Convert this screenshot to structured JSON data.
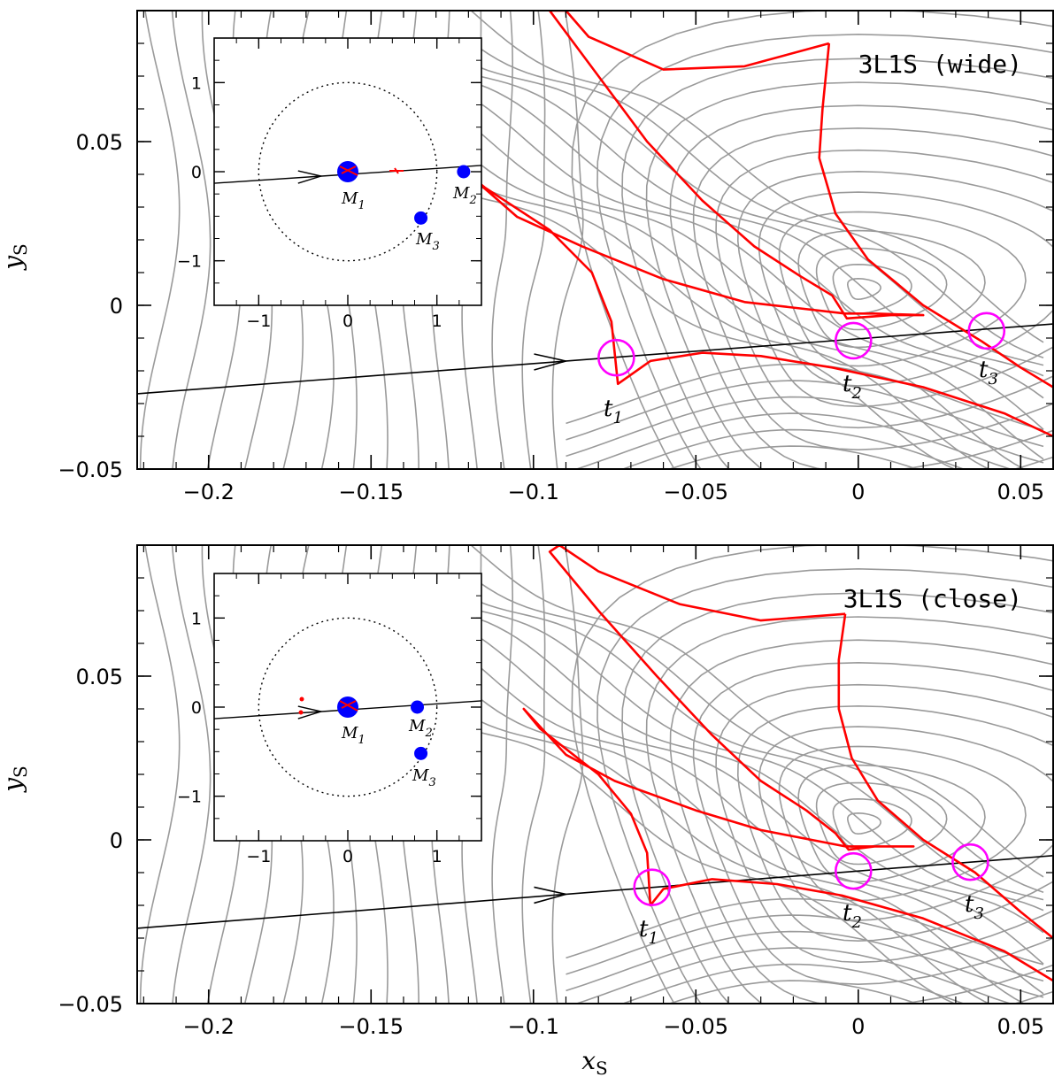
{
  "chart_data": [
    {
      "type": "line",
      "title": "3L1S (wide)",
      "xlabel": "",
      "ylabel": "y_S",
      "xlim": [
        -0.222,
        0.06
      ],
      "ylim": [
        -0.05,
        0.09
      ],
      "xticks": [
        -0.2,
        -0.15,
        -0.1,
        -0.05,
        0,
        0.05
      ],
      "xtick_labels": [
        "−0.2",
        "−0.15",
        "−0.1",
        "−0.05",
        "0",
        "0.05"
      ],
      "yticks": [
        -0.05,
        0,
        0.05
      ],
      "ytick_labels": [
        "−0.05",
        "0",
        "0.05"
      ],
      "contours_color": "#9a9a9a",
      "caustic_color": "#ff0000",
      "trajectory": {
        "p1": [
          -0.222,
          -0.027
        ],
        "p2": [
          0.06,
          -0.0057
        ],
        "arrow_x": -0.09
      },
      "caustic": {
        "large": [
          [
            -0.009,
            0.08
          ],
          [
            -0.035,
            0.073
          ],
          [
            -0.06,
            0.072
          ],
          [
            -0.083,
            0.082
          ],
          [
            -0.09,
            0.09
          ],
          [
            -0.095,
            0.09
          ],
          [
            -0.08,
            0.07
          ],
          [
            -0.065,
            0.05
          ],
          [
            -0.048,
            0.032
          ],
          [
            -0.032,
            0.018
          ],
          [
            -0.018,
            0.009
          ],
          [
            -0.008,
            0.003
          ],
          [
            -0.0035,
            -0.004
          ],
          [
            0.01,
            -0.003
          ],
          [
            0.02,
            -0.003
          ],
          [
            0.005,
            -0.0025
          ],
          [
            -0.004,
            -0.0025
          ],
          [
            -0.035,
            0.001
          ],
          [
            -0.06,
            0.008
          ],
          [
            -0.085,
            0.018
          ],
          [
            -0.105,
            0.027
          ],
          [
            -0.12,
            0.04
          ],
          [
            -0.115,
            0.036
          ],
          [
            -0.095,
            0.023
          ],
          [
            -0.082,
            0.01
          ],
          [
            -0.076,
            -0.005
          ],
          [
            -0.074,
            -0.024
          ],
          [
            -0.064,
            -0.017
          ],
          [
            -0.048,
            -0.0145
          ],
          [
            -0.03,
            -0.0155
          ],
          [
            -0.008,
            -0.019
          ],
          [
            0.02,
            -0.025
          ],
          [
            0.045,
            -0.033
          ],
          [
            0.06,
            -0.04
          ]
        ],
        "small": [
          [
            -0.009,
            0.08
          ],
          [
            -0.011,
            0.06
          ],
          [
            -0.012,
            0.045
          ],
          [
            -0.007,
            0.028
          ],
          [
            0.003,
            0.014
          ],
          [
            0.02,
            0.0
          ],
          [
            0.038,
            -0.011
          ],
          [
            0.05,
            -0.019
          ],
          [
            0.06,
            -0.025
          ]
        ]
      },
      "contours": [
        {
          "points": [
            [
              -0.138,
              0.09
            ],
            [
              -0.138,
              -0.05
            ]
          ]
        },
        {
          "points": [
            [
              -0.128,
              0.09
            ],
            [
              -0.128,
              -0.05
            ]
          ]
        },
        {
          "points": [
            [
              -0.118,
              0.09
            ],
            [
              -0.118,
              -0.05
            ]
          ]
        },
        {
          "points": [
            [
              -0.2,
              0.09
            ],
            [
              -0.198,
              0.06
            ],
            [
              -0.195,
              0.0
            ],
            [
              -0.195,
              -0.05
            ]
          ]
        },
        {
          "points": [
            [
              -0.178,
              0.09
            ],
            [
              -0.176,
              0.03
            ],
            [
              -0.176,
              -0.05
            ]
          ]
        },
        {
          "points": [
            [
              -0.16,
              0.09
            ],
            [
              -0.159,
              0.0
            ],
            [
              -0.159,
              -0.05
            ]
          ]
        }
      ],
      "circles": [
        {
          "label": "t_1",
          "x": -0.0745,
          "y": -0.016
        },
        {
          "label": "t_2",
          "x": -0.0015,
          "y": -0.0108
        },
        {
          "label": "t_3",
          "x": 0.0395,
          "y": -0.0078
        }
      ],
      "inset": {
        "xlim": [
          -1.5,
          1.5
        ],
        "ylim": [
          -1.5,
          1.5
        ],
        "xticks": [
          -1,
          0,
          1
        ],
        "xtick_labels": [
          "−1",
          "0",
          "1"
        ],
        "yticks": [
          -1,
          0,
          1
        ],
        "ytick_labels": [
          "−1",
          "0",
          "1"
        ],
        "einstein_radius": 1,
        "masses": [
          {
            "label": "M_1",
            "x": 0.0,
            "y": 0.0,
            "size": "large"
          },
          {
            "label": "M_2",
            "x": 1.3,
            "y": 0.0,
            "size": "small"
          },
          {
            "label": "M_3",
            "x": 0.82,
            "y": -0.52,
            "size": "small"
          }
        ],
        "trajectory": {
          "p1": [
            -1.5,
            -0.13
          ],
          "p2": [
            1.5,
            0.07
          ],
          "arrow_x": -0.3
        }
      },
      "labels": {
        "tag": "3L1S (wide)",
        "t1": "t",
        "t1s": "1",
        "t2": "t",
        "t2s": "2",
        "t3": "t",
        "t3s": "3",
        "m1": "M",
        "m1s": "1",
        "m2": "M",
        "m2s": "2",
        "m3": "M",
        "m3s": "3"
      }
    },
    {
      "type": "line",
      "title": "3L1S (close)",
      "xlabel": "x_S",
      "ylabel": "y_S",
      "xlim": [
        -0.222,
        0.06
      ],
      "ylim": [
        -0.05,
        0.09
      ],
      "xticks": [
        -0.2,
        -0.15,
        -0.1,
        -0.05,
        0,
        0.05
      ],
      "xtick_labels": [
        "−0.2",
        "−0.15",
        "−0.1",
        "−0.05",
        "0",
        "0.05"
      ],
      "yticks": [
        -0.05,
        0,
        0.05
      ],
      "ytick_labels": [
        "−0.05",
        "0",
        "0.05"
      ],
      "contours_color": "#9a9a9a",
      "caustic_color": "#ff0000",
      "trajectory": {
        "p1": [
          -0.222,
          -0.027
        ],
        "p2": [
          0.06,
          -0.0048
        ],
        "arrow_x": -0.09
      },
      "caustic": {
        "large": [
          [
            -0.004,
            0.069
          ],
          [
            -0.03,
            0.067
          ],
          [
            -0.055,
            0.072
          ],
          [
            -0.08,
            0.082
          ],
          [
            -0.092,
            0.09
          ],
          [
            -0.095,
            0.088
          ],
          [
            -0.08,
            0.07
          ],
          [
            -0.062,
            0.05
          ],
          [
            -0.045,
            0.032
          ],
          [
            -0.03,
            0.018
          ],
          [
            -0.016,
            0.009
          ],
          [
            -0.007,
            0.002
          ],
          [
            -0.003,
            -0.003
          ],
          [
            0.005,
            -0.002
          ],
          [
            0.017,
            -0.002
          ],
          [
            0.005,
            -0.002
          ],
          [
            -0.004,
            -0.002
          ],
          [
            -0.03,
            0.003
          ],
          [
            -0.05,
            0.009
          ],
          [
            -0.075,
            0.018
          ],
          [
            -0.09,
            0.026
          ],
          [
            -0.103,
            0.04
          ],
          [
            -0.098,
            0.034
          ],
          [
            -0.08,
            0.02
          ],
          [
            -0.07,
            0.008
          ],
          [
            -0.065,
            -0.004
          ],
          [
            -0.064,
            -0.02
          ],
          [
            -0.06,
            -0.015
          ],
          [
            -0.045,
            -0.012
          ],
          [
            -0.025,
            -0.0135
          ],
          [
            -0.005,
            -0.017
          ],
          [
            0.02,
            -0.024
          ],
          [
            0.045,
            -0.034
          ],
          [
            0.06,
            -0.043
          ]
        ],
        "small": [
          [
            -0.004,
            0.069
          ],
          [
            -0.006,
            0.055
          ],
          [
            -0.006,
            0.04
          ],
          [
            -0.002,
            0.025
          ],
          [
            0.006,
            0.012
          ],
          [
            0.02,
            0.0
          ],
          [
            0.036,
            -0.01
          ],
          [
            0.05,
            -0.022
          ],
          [
            0.06,
            -0.03
          ]
        ]
      },
      "contours": [
        {
          "points": [
            [
              -0.2,
              0.09
            ],
            [
              -0.2,
              -0.05
            ]
          ]
        }
      ],
      "circles": [
        {
          "label": "t_1",
          "x": -0.0635,
          "y": -0.0145
        },
        {
          "label": "t_2",
          "x": -0.0015,
          "y": -0.0095
        },
        {
          "label": "t_3",
          "x": 0.0345,
          "y": -0.0068
        }
      ],
      "inset": {
        "xlim": [
          -1.5,
          1.5
        ],
        "ylim": [
          -1.5,
          1.5
        ],
        "xticks": [
          -1,
          0,
          1
        ],
        "xtick_labels": [
          "−1",
          "0",
          "1"
        ],
        "yticks": [
          -1,
          0,
          1
        ],
        "ytick_labels": [
          "−1",
          "0",
          "1"
        ],
        "einstein_radius": 1,
        "masses": [
          {
            "label": "M_1",
            "x": 0.0,
            "y": 0.0,
            "size": "large"
          },
          {
            "label": "M_2",
            "x": 0.78,
            "y": 0.0,
            "size": "small"
          },
          {
            "label": "M_3",
            "x": 0.82,
            "y": -0.52,
            "size": "small"
          }
        ],
        "trajectory": {
          "p1": [
            -1.5,
            -0.13
          ],
          "p2": [
            1.5,
            0.07
          ],
          "arrow_x": -0.3
        }
      },
      "labels": {
        "tag": "3L1S (close)",
        "t1": "t",
        "t1s": "1",
        "t2": "t",
        "t2s": "2",
        "t3": "t",
        "t3s": "3",
        "m1": "M",
        "m1s": "1",
        "m2": "M",
        "m2s": "2",
        "m3": "M",
        "m3s": "3"
      }
    }
  ],
  "axis_labels": {
    "x": "x",
    "x_sub": "S",
    "y": "y",
    "y_sub": "S"
  }
}
